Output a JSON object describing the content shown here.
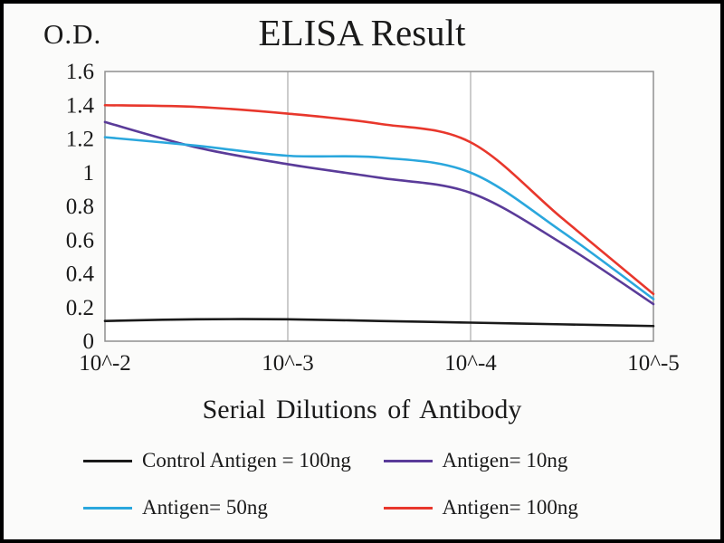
{
  "figure": {
    "background": "#fbfbfa",
    "border_color": "#000000",
    "plot_border_color": "#8f8f8f",
    "gridline_color": "#9a9a9a"
  },
  "chart_data": {
    "type": "line",
    "title": "ELISA Result",
    "ylabel": "O.D.",
    "xlabel": "Serial Dilutions  of Antibody",
    "x_ticks": [
      "10^-2",
      "10^-3",
      "10^-4",
      "10^-5"
    ],
    "y_ticks": [
      "0",
      "0.2",
      "0.4",
      "0.6",
      "0.8",
      "1",
      "1.2",
      "1.4",
      "1.6"
    ],
    "ylim": [
      0,
      1.6
    ],
    "xlim_decades": [
      -2,
      -5
    ],
    "x": [
      -2,
      -2.5,
      -3,
      -3.5,
      -4,
      -4.5,
      -5
    ],
    "grid": "vertical-only",
    "legend_position": "bottom",
    "series": [
      {
        "name": "Control Antigen = 100ng",
        "color": "#1a1a1a",
        "values": [
          0.12,
          0.13,
          0.13,
          0.12,
          0.11,
          0.1,
          0.09
        ]
      },
      {
        "name": "Antigen= 10ng",
        "color": "#5a3b99",
        "values": [
          1.3,
          1.15,
          1.05,
          0.97,
          0.88,
          0.58,
          0.22
        ]
      },
      {
        "name": "Antigen= 50ng",
        "color": "#2aa7dd",
        "values": [
          1.21,
          1.16,
          1.1,
          1.09,
          1.0,
          0.65,
          0.25
        ]
      },
      {
        "name": "Antigen= 100ng",
        "color": "#e8372c",
        "values": [
          1.4,
          1.39,
          1.35,
          1.29,
          1.18,
          0.73,
          0.28
        ]
      }
    ]
  }
}
